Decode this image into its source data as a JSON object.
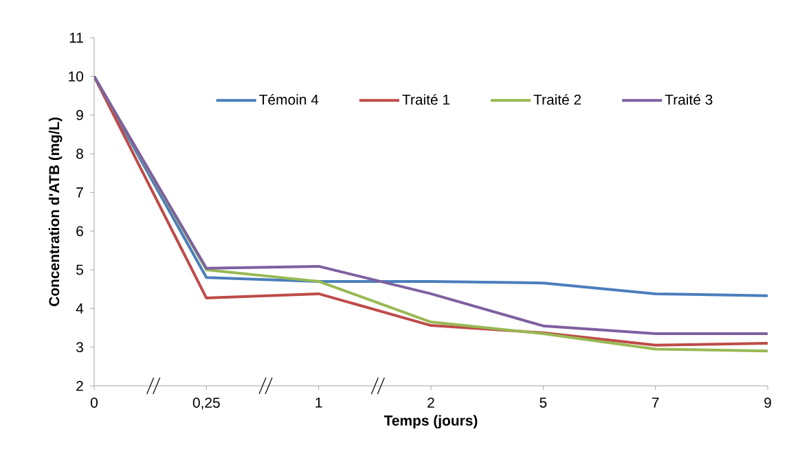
{
  "chart_data": {
    "type": "line",
    "xlabel": "Temps (jours)",
    "ylabel": "Concentration d'ATB (mg/L)",
    "categories": [
      "0",
      "0,25",
      "1",
      "2",
      "5",
      "7",
      "9"
    ],
    "ylim": [
      2,
      11
    ],
    "yticks": [
      2,
      3,
      4,
      5,
      6,
      7,
      8,
      9,
      10,
      11
    ],
    "grid": false,
    "legend": "top",
    "marker": "none",
    "line_style": "solid",
    "series": [
      {
        "name": "Témoin 4",
        "color": "#4a7ebb",
        "values": [
          10,
          4.8,
          4.7,
          4.7,
          4.66,
          4.38,
          4.33
        ]
      },
      {
        "name": "Traité 1",
        "color": "#be4b48",
        "values": [
          10,
          4.27,
          4.38,
          3.56,
          3.37,
          3.05,
          3.1
        ]
      },
      {
        "name": "Traité 2",
        "color": "#98b954",
        "values": [
          10,
          5.0,
          4.7,
          3.65,
          3.35,
          2.95,
          2.9
        ]
      },
      {
        "name": "Traité 3",
        "color": "#7d60a0",
        "values": [
          10,
          5.04,
          5.09,
          4.38,
          3.55,
          3.35,
          3.35
        ]
      }
    ]
  }
}
